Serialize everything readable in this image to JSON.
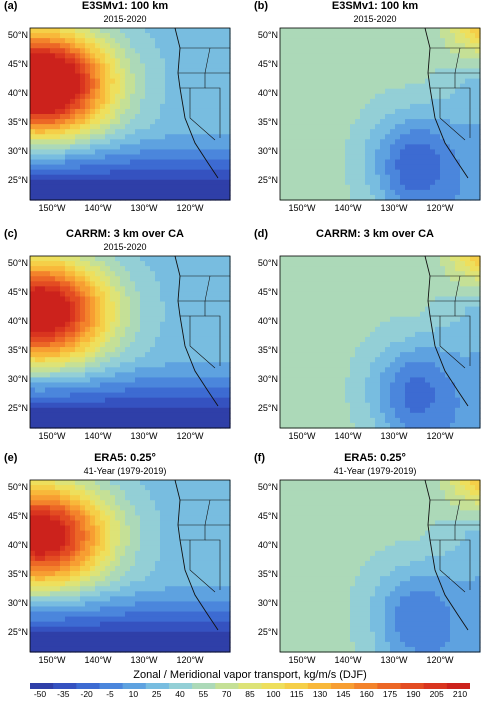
{
  "panels": [
    {
      "id": "a",
      "label": "(a)",
      "title": "E3SMv1: 100 km",
      "subtitle": "2015-2020",
      "field": "zonal",
      "strength": 1.0
    },
    {
      "id": "b",
      "label": "(b)",
      "title": "E3SMv1: 100 km",
      "subtitle": "2015-2020",
      "field": "meridional",
      "strength": 1.0
    },
    {
      "id": "c",
      "label": "(c)",
      "title": "CARRM: 3 km over CA",
      "subtitle": "2015-2020",
      "field": "zonal",
      "strength": 0.85
    },
    {
      "id": "d",
      "label": "(d)",
      "title": "CARRM: 3 km over CA",
      "subtitle": "",
      "field": "meridional",
      "strength": 0.9
    },
    {
      "id": "e",
      "label": "(e)",
      "title": "ERA5: 0.25°",
      "subtitle": "41-Year (1979-2019)",
      "field": "zonal",
      "strength": 0.8
    },
    {
      "id": "f",
      "label": "(f)",
      "title": "ERA5: 0.25°",
      "subtitle": "41-Year (1979-2019)",
      "field": "meridional",
      "strength": 0.8
    }
  ],
  "lat_labels": [
    "50°N",
    "45°N",
    "40°N",
    "35°N",
    "30°N",
    "25°N"
  ],
  "lon_labels": [
    "150°W",
    "140°W",
    "130°W",
    "120°W"
  ],
  "colorbar": {
    "title": "Zonal / Meridional vapor transport, kg/m/s (DJF)",
    "ticks": [
      "-50",
      "-35",
      "-20",
      "-5",
      "10",
      "25",
      "40",
      "55",
      "70",
      "85",
      "100",
      "115",
      "130",
      "145",
      "160",
      "175",
      "190",
      "205",
      "210"
    ],
    "colors": [
      "#2f3fa8",
      "#3552c0",
      "#3d6bd2",
      "#4b86dc",
      "#5ea2e0",
      "#78bde0",
      "#93cfd6",
      "#acd9b8",
      "#c5e096",
      "#dde377",
      "#eedf5c",
      "#f5cf48",
      "#f8b83a",
      "#f79e32",
      "#f3832b",
      "#ec6726",
      "#e34c22",
      "#d9351f",
      "#cc221c"
    ]
  }
}
